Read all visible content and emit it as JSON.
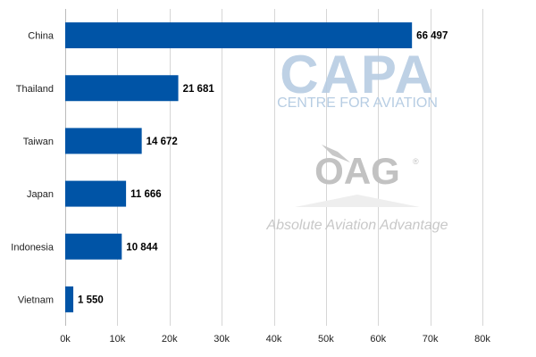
{
  "chart_data": {
    "type": "bar",
    "orientation": "horizontal",
    "categories": [
      "China",
      "Thailand",
      "Taiwan",
      "Japan",
      "Indonesia",
      "Vietnam"
    ],
    "values": [
      66497,
      21681,
      14672,
      11666,
      10844,
      1550
    ],
    "data_labels": [
      "66 497",
      "21 681",
      "14 672",
      "11 666",
      "10 844",
      "1 550"
    ],
    "xlim": [
      0,
      80000
    ],
    "x_ticks": [
      0,
      10000,
      20000,
      30000,
      40000,
      50000,
      60000,
      70000,
      80000
    ],
    "x_tick_labels": [
      "0k",
      "10k",
      "20k",
      "30k",
      "40k",
      "50k",
      "60k",
      "70k",
      "80k"
    ],
    "grid": true,
    "bar_color": "#0054a6",
    "title": "",
    "xlabel": "",
    "ylabel": ""
  },
  "watermarks": {
    "capa": {
      "logo_text": "CAPA",
      "subtitle": "CENTRE FOR AVIATION",
      "color": "#b7cde3"
    },
    "oag": {
      "logo_text": "OAG",
      "registered_mark": "®",
      "tagline": "Absolute Aviation Advantage",
      "color": "#c2c2c2"
    }
  }
}
